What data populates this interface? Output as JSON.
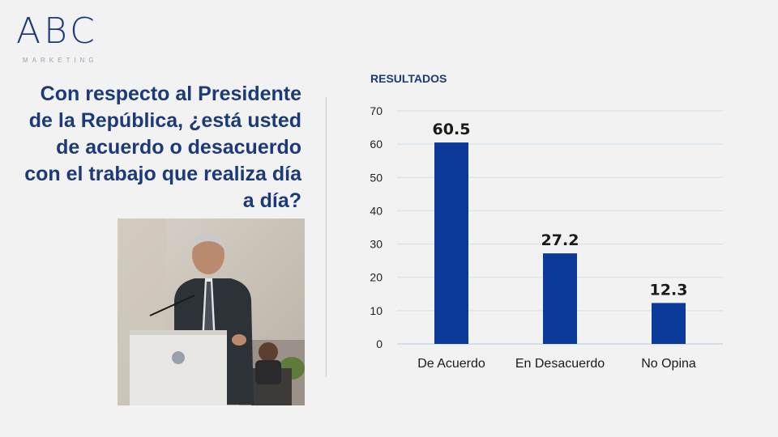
{
  "logo": {
    "letters": "ABC",
    "subtitle": "MARKETING"
  },
  "question": "Con respecto al Presidente de la República, ¿está usted de acuerdo o desacuerdo con el trabajo que realiza día a día?",
  "results_title": "RESULTADOS",
  "colors": {
    "bar": "#0b3a9a",
    "title": "#1c3a78",
    "grid": "#cfe0ee"
  },
  "chart_data": {
    "type": "bar",
    "title": "RESULTADOS",
    "categories": [
      "De Acuerdo",
      "En Desacuerdo",
      "No Opina"
    ],
    "values": [
      60.5,
      27.2,
      12.3
    ],
    "value_labels": [
      "60.5",
      "27.2",
      "12.3"
    ],
    "xlabel": "",
    "ylabel": "",
    "ylim": [
      0,
      70
    ],
    "yticks": [
      0,
      10,
      20,
      30,
      40,
      50,
      60,
      70
    ],
    "grid": true,
    "legend": "none"
  }
}
